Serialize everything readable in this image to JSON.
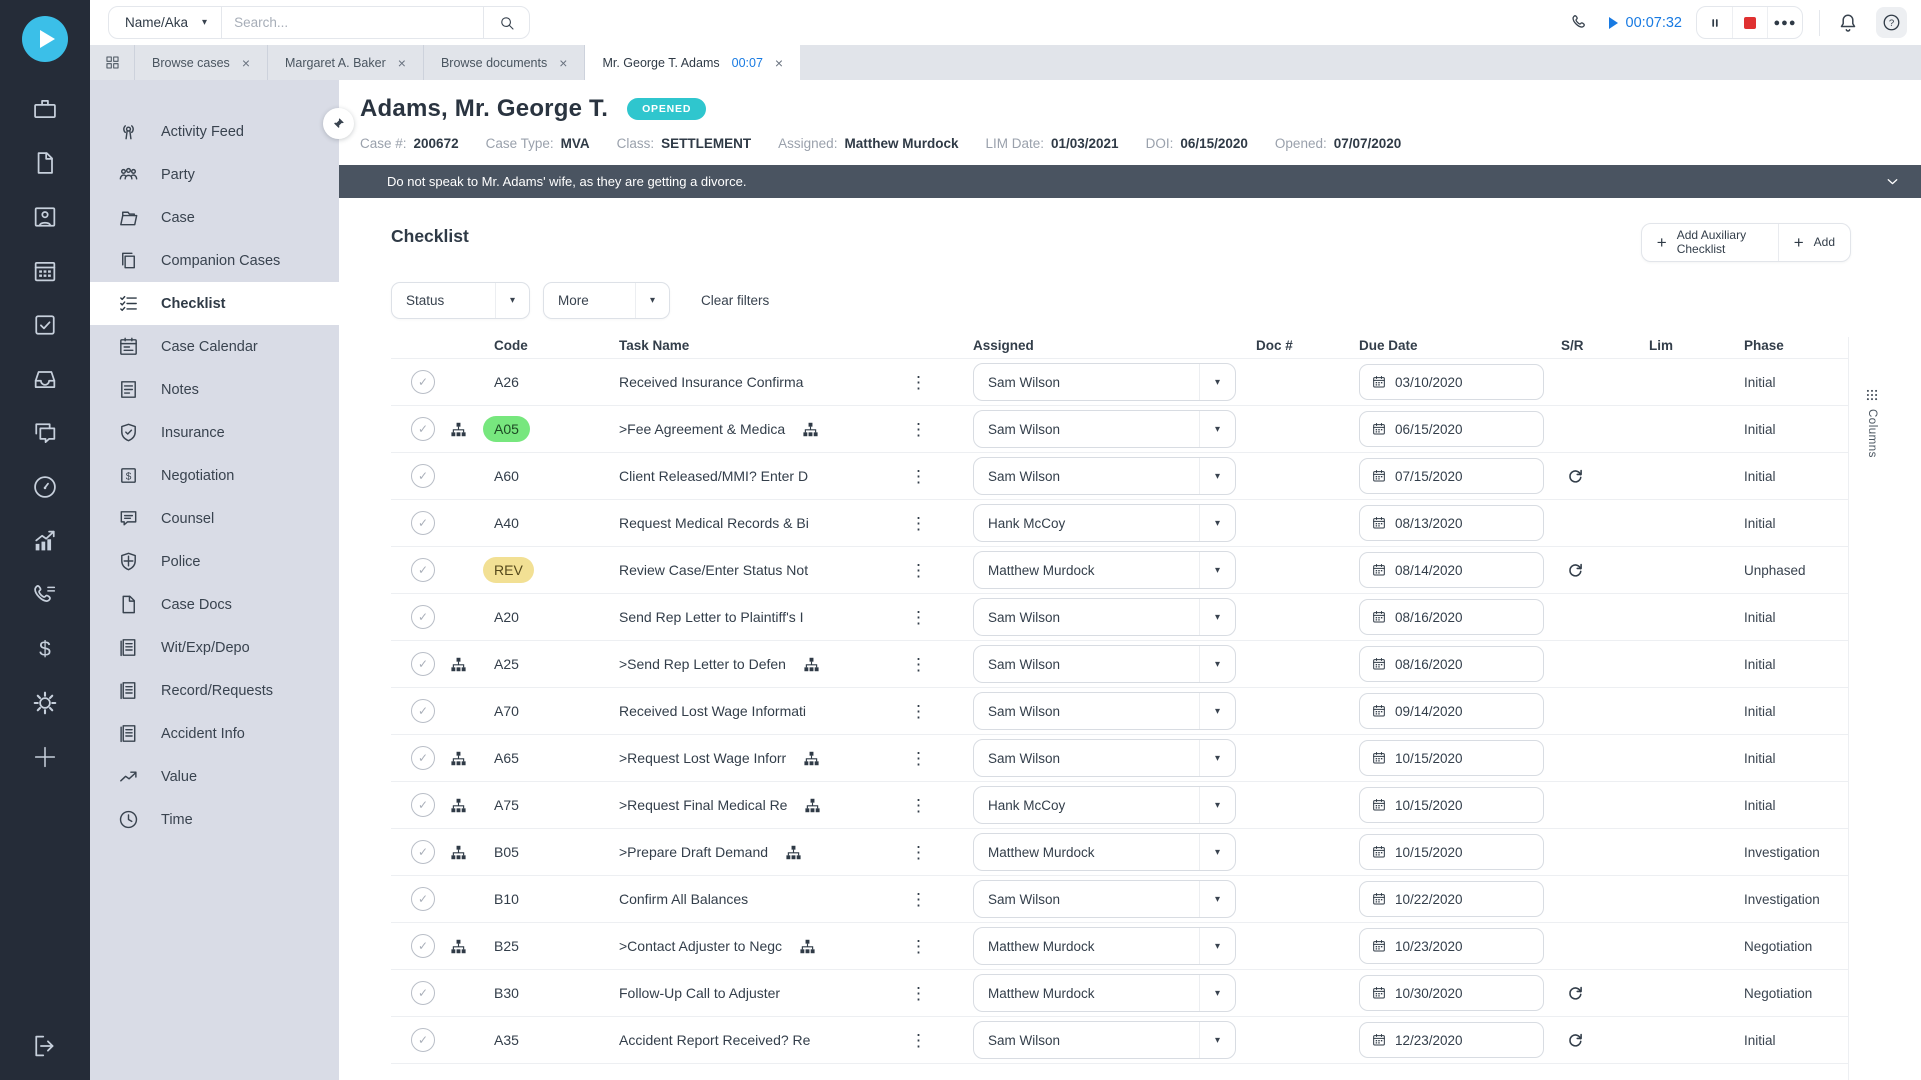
{
  "topbar": {
    "search_category": "Name/Aka",
    "search_placeholder": "Search...",
    "timer": "00:07:32"
  },
  "tabs": [
    {
      "label": "Browse cases",
      "active": false
    },
    {
      "label": "Margaret A. Baker",
      "active": false
    },
    {
      "label": "Browse documents",
      "active": false
    },
    {
      "label": "Mr. George T. Adams",
      "timer": "00:07",
      "active": true
    }
  ],
  "rail": {
    "icons": [
      "briefcase",
      "document",
      "contact-card",
      "calendar",
      "task-check",
      "inbox",
      "chat",
      "dashboard",
      "chart",
      "call-log",
      "billing",
      "settings",
      "add"
    ],
    "logout_icon": "logout"
  },
  "sidebar": {
    "items": [
      {
        "label": "Activity Feed",
        "icon": "activity-feed",
        "active": false
      },
      {
        "label": "Party",
        "icon": "party",
        "active": false
      },
      {
        "label": "Case",
        "icon": "case",
        "active": false
      },
      {
        "label": "Companion Cases",
        "icon": "companion-cases",
        "active": false
      },
      {
        "label": "Checklist",
        "icon": "checklist",
        "active": true
      },
      {
        "label": "Case Calendar",
        "icon": "case-calendar",
        "active": false
      },
      {
        "label": "Notes",
        "icon": "notes",
        "active": false
      },
      {
        "label": "Insurance",
        "icon": "insurance",
        "active": false
      },
      {
        "label": "Negotiation",
        "icon": "negotiation",
        "active": false
      },
      {
        "label": "Counsel",
        "icon": "counsel",
        "active": false
      },
      {
        "label": "Police",
        "icon": "police",
        "active": false
      },
      {
        "label": "Case Docs",
        "icon": "case-docs",
        "active": false
      },
      {
        "label": "Wit/Exp/Depo",
        "icon": "wit-exp-depo",
        "active": false
      },
      {
        "label": "Record/Requests",
        "icon": "record-requests",
        "active": false
      },
      {
        "label": "Accident Info",
        "icon": "accident-info",
        "active": false
      },
      {
        "label": "Value",
        "icon": "value",
        "active": false
      },
      {
        "label": "Time",
        "icon": "time",
        "active": false
      }
    ]
  },
  "case_header": {
    "name": "Adams, Mr. George T.",
    "status": "OPENED",
    "fields": [
      {
        "label": "Case #:",
        "value": "200672"
      },
      {
        "label": "Case Type:",
        "value": "MVA"
      },
      {
        "label": "Class:",
        "value": "SETTLEMENT"
      },
      {
        "label": "Assigned:",
        "value": "Matthew Murdock"
      },
      {
        "label": "LIM Date:",
        "value": "01/03/2021"
      },
      {
        "label": "DOI:",
        "value": "06/15/2020"
      },
      {
        "label": "Opened:",
        "value": "07/07/2020"
      }
    ],
    "note": "Do not speak to Mr. Adams' wife, as they are getting a divorce."
  },
  "checklist": {
    "title": "Checklist",
    "filters": {
      "status_label": "Status",
      "more_label": "More",
      "clear_label": "Clear filters"
    },
    "buttons": {
      "add_aux": "Add Auxiliary Checklist",
      "add": "Add"
    },
    "columns": [
      "Code",
      "Task Name",
      "Assigned",
      "Doc #",
      "Due Date",
      "S/R",
      "Lim",
      "Phase"
    ],
    "columns_control": "Columns",
    "rows": [
      {
        "code": "A26",
        "code_color": "",
        "hierarchy": false,
        "task": "Received Insurance Confirma",
        "assigned": "Sam Wilson",
        "due": "03/10/2020",
        "refresh": false,
        "phase": "Initial"
      },
      {
        "code": "A05",
        "code_color": "green",
        "hierarchy": true,
        "task": ">Fee Agreement & Medica",
        "assigned": "Sam Wilson",
        "due": "06/15/2020",
        "refresh": false,
        "phase": "Initial"
      },
      {
        "code": "A60",
        "code_color": "",
        "hierarchy": false,
        "task": "Client Released/MMI? Enter D",
        "assigned": "Sam Wilson",
        "due": "07/15/2020",
        "refresh": true,
        "phase": "Initial"
      },
      {
        "code": "A40",
        "code_color": "",
        "hierarchy": false,
        "task": "Request Medical Records & Bi",
        "assigned": "Hank McCoy",
        "due": "08/13/2020",
        "refresh": false,
        "phase": "Initial"
      },
      {
        "code": "REV",
        "code_color": "yellow",
        "hierarchy": false,
        "task": "Review Case/Enter Status Not",
        "assigned": "Matthew Murdock",
        "due": "08/14/2020",
        "refresh": true,
        "phase": "Unphased"
      },
      {
        "code": "A20",
        "code_color": "",
        "hierarchy": false,
        "task": "Send Rep Letter to Plaintiff's I",
        "assigned": "Sam Wilson",
        "due": "08/16/2020",
        "refresh": false,
        "phase": "Initial"
      },
      {
        "code": "A25",
        "code_color": "",
        "hierarchy": true,
        "task": ">Send Rep Letter to Defen",
        "assigned": "Sam Wilson",
        "due": "08/16/2020",
        "refresh": false,
        "phase": "Initial"
      },
      {
        "code": "A70",
        "code_color": "",
        "hierarchy": false,
        "task": "Received Lost Wage Informati",
        "assigned": "Sam Wilson",
        "due": "09/14/2020",
        "refresh": false,
        "phase": "Initial"
      },
      {
        "code": "A65",
        "code_color": "",
        "hierarchy": true,
        "task": ">Request Lost Wage Inforr",
        "assigned": "Sam Wilson",
        "due": "10/15/2020",
        "refresh": false,
        "phase": "Initial"
      },
      {
        "code": "A75",
        "code_color": "",
        "hierarchy": true,
        "task": ">Request Final Medical Re",
        "assigned": "Hank McCoy",
        "due": "10/15/2020",
        "refresh": false,
        "phase": "Initial"
      },
      {
        "code": "B05",
        "code_color": "",
        "hierarchy": true,
        "task": ">Prepare Draft Demand",
        "assigned": "Matthew Murdock",
        "due": "10/15/2020",
        "refresh": false,
        "phase": "Investigation"
      },
      {
        "code": "B10",
        "code_color": "",
        "hierarchy": false,
        "task": "Confirm All Balances",
        "assigned": "Sam Wilson",
        "due": "10/22/2020",
        "refresh": false,
        "phase": "Investigation"
      },
      {
        "code": "B25",
        "code_color": "",
        "hierarchy": true,
        "task": ">Contact Adjuster to Negc",
        "assigned": "Matthew Murdock",
        "due": "10/23/2020",
        "refresh": false,
        "phase": "Negotiation"
      },
      {
        "code": "B30",
        "code_color": "",
        "hierarchy": false,
        "task": "Follow-Up Call to Adjuster",
        "assigned": "Matthew Murdock",
        "due": "10/30/2020",
        "refresh": true,
        "phase": "Negotiation"
      },
      {
        "code": "A35",
        "code_color": "",
        "hierarchy": false,
        "task": "Accident Report Received? Re",
        "assigned": "Sam Wilson",
        "due": "12/23/2020",
        "refresh": true,
        "phase": "Initial"
      }
    ]
  },
  "colors": {
    "rail_bg": "#252C38",
    "logo_cyan": "#3BBFE8",
    "sidebar_bg": "#D9DCE6",
    "banner_bg": "#4A5461",
    "status_teal": "#2FC6CE",
    "timer_blue": "#187AE2",
    "stop_red": "#E03131",
    "code_green": "#77E77E",
    "code_yellow": "#F2E094"
  }
}
